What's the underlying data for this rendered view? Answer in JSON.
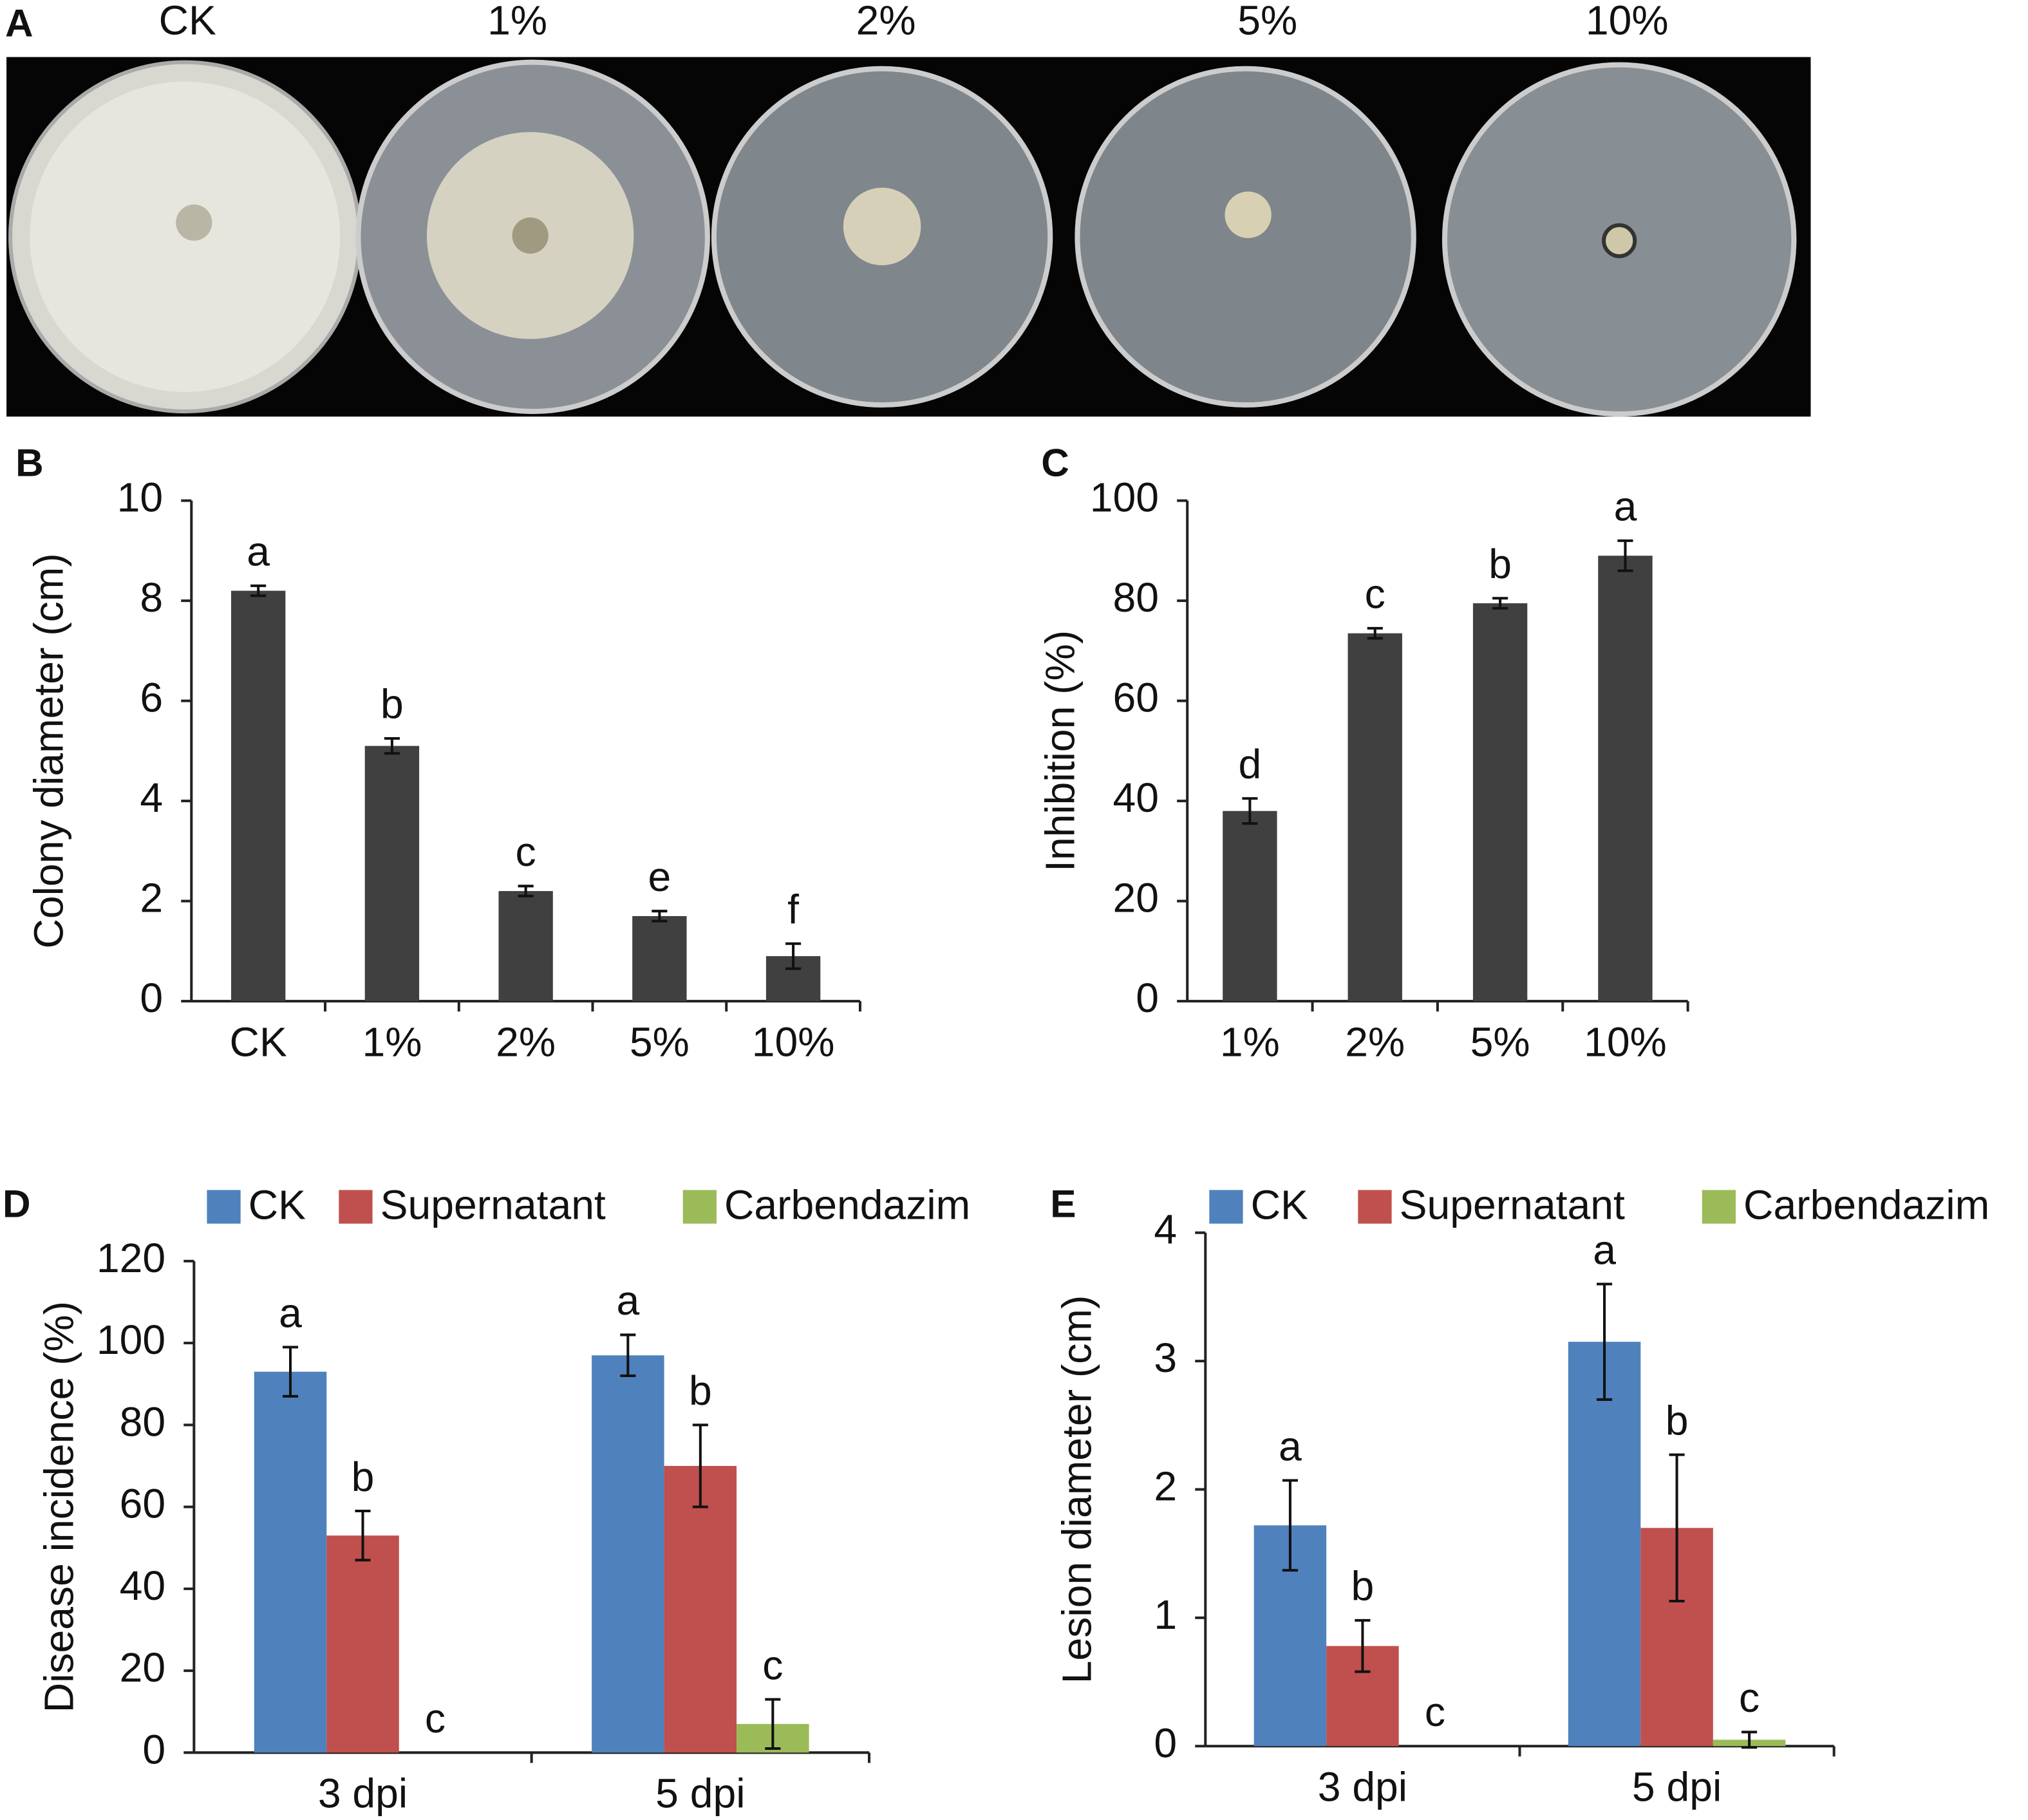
{
  "photo": {
    "panel": "A",
    "labels": [
      "CK",
      "1%",
      "2%",
      "5%",
      "10%"
    ]
  },
  "chart_data": [
    {
      "type": "bar",
      "panel": "B",
      "ylabel": "Colony diameter (cm)",
      "categories": [
        "CK",
        "1%",
        "2%",
        "5%",
        "10%"
      ],
      "values": [
        8.2,
        5.1,
        2.2,
        1.7,
        0.9
      ],
      "errors": [
        0.1,
        0.15,
        0.1,
        0.1,
        0.25
      ],
      "letters": [
        "a",
        "b",
        "c",
        "e",
        "f"
      ],
      "color": "#404040",
      "ylim": [
        0,
        10
      ],
      "yticks": [
        0,
        2,
        4,
        6,
        8,
        10
      ]
    },
    {
      "type": "bar",
      "panel": "C",
      "ylabel": "Inhibition (%)",
      "categories": [
        "1%",
        "2%",
        "5%",
        "10%"
      ],
      "values": [
        38,
        73.5,
        79.5,
        89
      ],
      "errors": [
        2.5,
        1,
        1,
        3
      ],
      "letters": [
        "d",
        "c",
        "b",
        "a"
      ],
      "color": "#404040",
      "ylim": [
        0,
        100
      ],
      "yticks": [
        0,
        20,
        40,
        60,
        80,
        100
      ]
    },
    {
      "type": "grouped_bar",
      "panel": "D",
      "ylabel": "Disease incidence (%)",
      "categories": [
        "3 dpi",
        "5 dpi"
      ],
      "series": [
        {
          "name": "CK",
          "color": "#4f81bd",
          "values": [
            93,
            97
          ],
          "errors": [
            6,
            5
          ],
          "letters": [
            "a",
            "a"
          ]
        },
        {
          "name": "Supernatant",
          "color": "#c0504d",
          "values": [
            53,
            70
          ],
          "errors": [
            6,
            10
          ],
          "letters": [
            "b",
            "b"
          ]
        },
        {
          "name": "Carbendazim",
          "color": "#9bbb59",
          "values": [
            0,
            7
          ],
          "errors": [
            0,
            6
          ],
          "letters": [
            "c",
            "c"
          ]
        }
      ],
      "ylim": [
        0,
        120
      ],
      "yticks": [
        0,
        20,
        40,
        60,
        80,
        100,
        120
      ]
    },
    {
      "type": "grouped_bar",
      "panel": "E",
      "ylabel": "Lesion diameter (cm)",
      "categories": [
        "3 dpi",
        "5 dpi"
      ],
      "series": [
        {
          "name": "CK",
          "color": "#4f81bd",
          "values": [
            1.72,
            3.15
          ],
          "errors": [
            0.35,
            0.45
          ],
          "letters": [
            "a",
            "a"
          ]
        },
        {
          "name": "Supernatant",
          "color": "#c0504d",
          "values": [
            0.78,
            1.7
          ],
          "errors": [
            0.2,
            0.57
          ],
          "letters": [
            "b",
            "b"
          ]
        },
        {
          "name": "Carbendazim",
          "color": "#9bbb59",
          "values": [
            0,
            0.05
          ],
          "errors": [
            0,
            0.06
          ],
          "letters": [
            "c",
            "c"
          ]
        }
      ],
      "ylim": [
        0,
        4
      ],
      "yticks": [
        0,
        1,
        2,
        3,
        4
      ]
    }
  ]
}
